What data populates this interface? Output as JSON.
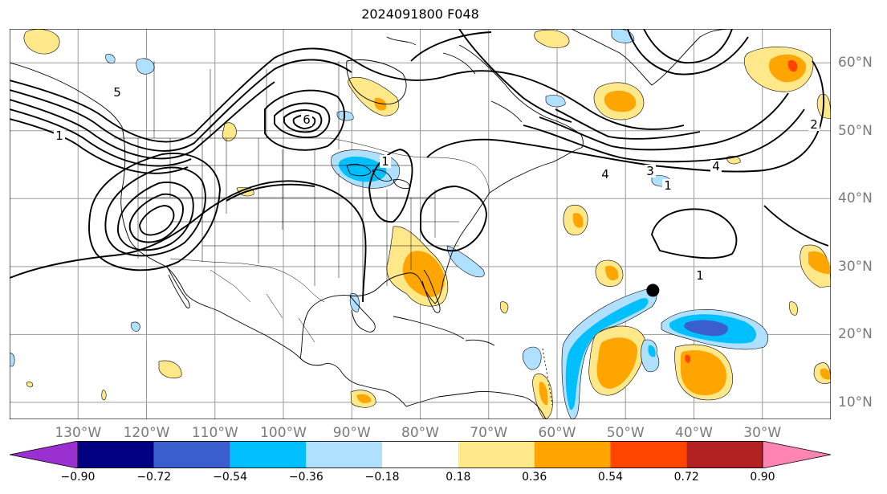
{
  "title": "2024091800 F048",
  "grid": true,
  "projection": "lat-lon",
  "extent": {
    "lon": [
      -140,
      -20
    ],
    "lat": [
      7.5,
      65
    ]
  },
  "longitude_labels": [
    {
      "lon": -130,
      "text": "130°W"
    },
    {
      "lon": -120,
      "text": "120°W"
    },
    {
      "lon": -110,
      "text": "110°W"
    },
    {
      "lon": -100,
      "text": "100°W"
    },
    {
      "lon": -90,
      "text": "90°W"
    },
    {
      "lon": -80,
      "text": "80°W"
    },
    {
      "lon": -70,
      "text": "70°W"
    },
    {
      "lon": -60,
      "text": "60°W"
    },
    {
      "lon": -50,
      "text": "50°W"
    },
    {
      "lon": -40,
      "text": "40°W"
    },
    {
      "lon": -30,
      "text": "30°W"
    }
  ],
  "latitude_labels": [
    {
      "lat": 60,
      "text": "60°N"
    },
    {
      "lat": 50,
      "text": "50°N"
    },
    {
      "lat": 40,
      "text": "40°N"
    },
    {
      "lat": 30,
      "text": "30°N"
    },
    {
      "lat": 20,
      "text": "20°N"
    },
    {
      "lat": 10,
      "text": "10°N"
    }
  ],
  "colorbar": {
    "extend": "both",
    "tick_labels": [
      "−0.90",
      "−0.72",
      "−0.54",
      "−0.36",
      "−0.18",
      "0.18",
      "0.36",
      "0.54",
      "0.72",
      "0.90"
    ],
    "under_color": "#9b30d0",
    "over_color": "#ff85b0",
    "bin_colors": [
      "#000080",
      "#3a5fcd",
      "#00bfff",
      "#b0e0ff",
      "#ffffff",
      "#ffe88a",
      "#ffa500",
      "#ff4500",
      "#b22222"
    ]
  },
  "contour_labels": [
    "1",
    "1",
    "1",
    "1",
    "2",
    "3",
    "4",
    "4",
    "5",
    "6"
  ],
  "marker": {
    "name": "storm-center",
    "lon": -46,
    "lat": 26.5,
    "color": "#000000"
  },
  "colors": {
    "positive_light": "#ffe88a",
    "positive_mid": "#ffa500",
    "positive_strong": "#ff4500",
    "negative_light": "#b0e0ff",
    "negative_mid": "#00bfff",
    "negative_strong": "#3a5fcd"
  }
}
